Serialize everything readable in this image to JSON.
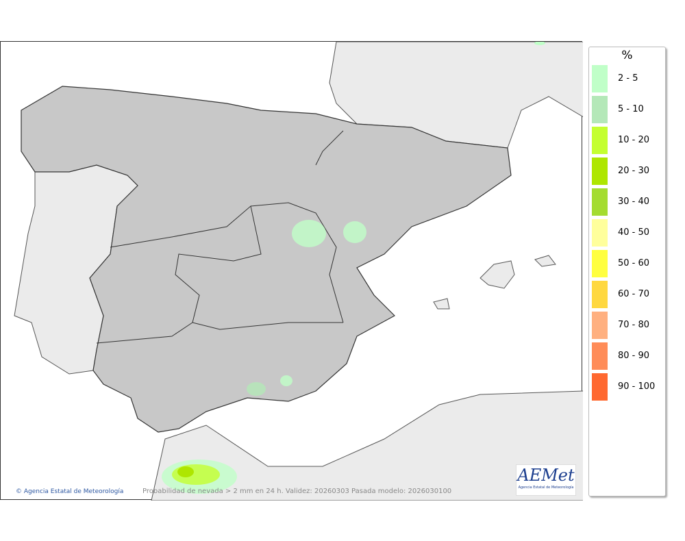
{
  "legend": {
    "title": "%",
    "items": [
      {
        "label": "2 - 5",
        "color": "#c0ffc8"
      },
      {
        "label": "5 - 10",
        "color": "#b4e8b8"
      },
      {
        "label": "10 - 20",
        "color": "#c4ff30"
      },
      {
        "label": "20 - 30",
        "color": "#aee600"
      },
      {
        "label": "30 - 40",
        "color": "#a4dc30"
      },
      {
        "label": "40 - 50",
        "color": "#ffff9c"
      },
      {
        "label": "50 - 60",
        "color": "#ffff40"
      },
      {
        "label": "60 - 70",
        "color": "#ffd840"
      },
      {
        "label": "70 - 80",
        "color": "#ffb080"
      },
      {
        "label": "80 - 90",
        "color": "#ff8c58"
      },
      {
        "label": "90 - 100",
        "color": "#ff6830"
      }
    ]
  },
  "credit": "© Agencia Estatal de Meteorología",
  "caption": "Probabilidad de nevada > 2 mm en 24 h. Validez: 20260303 Pasada modelo: 2026030100",
  "logo": {
    "text": "AEMet",
    "subtitle": "Agencia Estatal de Meteorología"
  }
}
